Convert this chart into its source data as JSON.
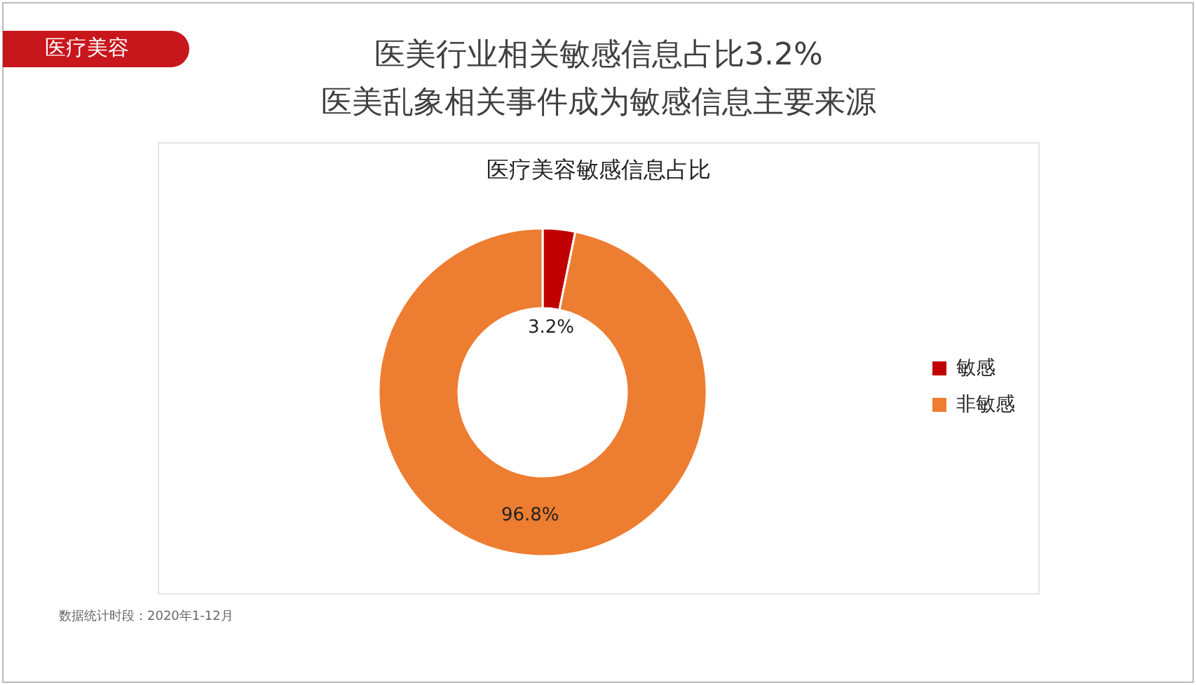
{
  "chart_data": {
    "type": "donut",
    "title": "医疗美容敏感信息占比",
    "categories": [
      "敏感",
      "非敏感"
    ],
    "values": [
      3.2,
      96.8
    ],
    "colors": [
      "#c00000",
      "#ed7d31"
    ],
    "value_labels": [
      "3.2%",
      "96.8%"
    ],
    "legend": "right",
    "annotations": [
      "医疗美容",
      "医美行业相关敏感信息占比3.2%",
      "医美乱象相关事件成为敏感信息主要来源",
      "数据统计时段：2020年1-12月"
    ]
  }
}
